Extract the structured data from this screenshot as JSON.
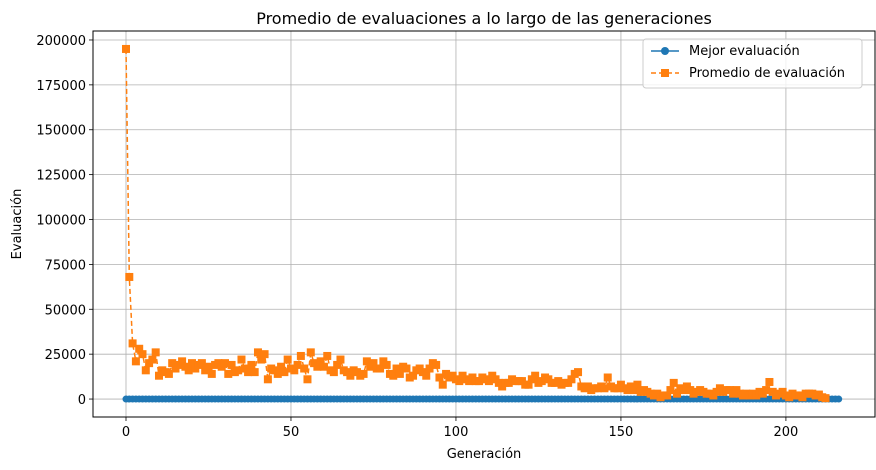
{
  "chart_data": {
    "type": "line",
    "title": "Promedio de evaluaciones a lo largo de las generaciones",
    "xlabel": "Generación",
    "ylabel": "Evaluación",
    "xlim": [
      -10,
      227
    ],
    "ylim": [
      -10000,
      205000
    ],
    "xticks": [
      0,
      50,
      100,
      150,
      200
    ],
    "yticks": [
      0,
      25000,
      50000,
      75000,
      100000,
      125000,
      150000,
      175000,
      200000
    ],
    "grid": true,
    "legend": "top-right",
    "series": [
      {
        "name": "Mejor evaluación",
        "color": "#1f77b4",
        "marker": "circle",
        "linestyle": "solid",
        "x_start": 0,
        "x_step": 1,
        "values": [
          0,
          0,
          0,
          0,
          0,
          0,
          0,
          0,
          0,
          0,
          0,
          0,
          0,
          0,
          0,
          0,
          0,
          0,
          0,
          0,
          0,
          0,
          0,
          0,
          0,
          0,
          0,
          0,
          0,
          0,
          0,
          0,
          0,
          0,
          0,
          0,
          0,
          0,
          0,
          0,
          0,
          0,
          0,
          0,
          0,
          0,
          0,
          0,
          0,
          0,
          0,
          0,
          0,
          0,
          0,
          0,
          0,
          0,
          0,
          0,
          0,
          0,
          0,
          0,
          0,
          0,
          0,
          0,
          0,
          0,
          0,
          0,
          0,
          0,
          0,
          0,
          0,
          0,
          0,
          0,
          0,
          0,
          0,
          0,
          0,
          0,
          0,
          0,
          0,
          0,
          0,
          0,
          0,
          0,
          0,
          0,
          0,
          0,
          0,
          0,
          0,
          0,
          0,
          0,
          0,
          0,
          0,
          0,
          0,
          0,
          0,
          0,
          0,
          0,
          0,
          0,
          0,
          0,
          0,
          0,
          0,
          0,
          0,
          0,
          0,
          0,
          0,
          0,
          0,
          0,
          0,
          0,
          0,
          0,
          0,
          0,
          0,
          0,
          0,
          0,
          0,
          0,
          0,
          0,
          0,
          0,
          0,
          0,
          0,
          0,
          0,
          0,
          0,
          0,
          0,
          0,
          0,
          0,
          0,
          0,
          0,
          0,
          0,
          0,
          0,
          0,
          0,
          0,
          0,
          0,
          0,
          0,
          0,
          0,
          0,
          0,
          0,
          0,
          0,
          0,
          0,
          0,
          0,
          0,
          0,
          0,
          0,
          0,
          0,
          0,
          0,
          0,
          0,
          0,
          0,
          0,
          0,
          0,
          0,
          0,
          0,
          0,
          0,
          0,
          0,
          0,
          0,
          0,
          0,
          0,
          0,
          0,
          0,
          0,
          0,
          0,
          0
        ]
      },
      {
        "name": "Promedio de evaluación",
        "color": "#ff7f0e",
        "marker": "square",
        "linestyle": "dashed",
        "x_start": 0,
        "x_step": 1,
        "values": [
          195000,
          68000,
          31000,
          21000,
          28000,
          25000,
          16000,
          20000,
          22000,
          26000,
          13000,
          16000,
          15000,
          14000,
          20000,
          17000,
          19000,
          21000,
          18000,
          16000,
          20000,
          17000,
          19000,
          20000,
          16000,
          18000,
          14000,
          19000,
          20000,
          18000,
          20000,
          14000,
          19000,
          15000,
          16000,
          22000,
          17000,
          15000,
          19000,
          15000,
          26000,
          22000,
          25000,
          11000,
          17000,
          16000,
          14000,
          18000,
          15000,
          22000,
          17000,
          16000,
          19000,
          24000,
          17000,
          11000,
          26000,
          20000,
          18000,
          21000,
          18000,
          24000,
          16000,
          15000,
          19000,
          22000,
          16000,
          15000,
          13000,
          16000,
          15000,
          13000,
          14000,
          21000,
          18000,
          20000,
          17000,
          17000,
          21000,
          19000,
          14000,
          13000,
          17000,
          14000,
          18000,
          17000,
          12000,
          13000,
          16000,
          17000,
          15000,
          13000,
          17000,
          20000,
          19000,
          12000,
          8000,
          14000,
          12000,
          13000,
          11000,
          10000,
          13000,
          11000,
          10000,
          12000,
          10000,
          10000,
          12000,
          11000,
          10000,
          13000,
          11000,
          9000,
          7000,
          9000,
          9000,
          11000,
          10000,
          10000,
          10000,
          8000,
          8000,
          11000,
          13000,
          9000,
          10000,
          12000,
          11000,
          9000,
          9000,
          10000,
          8000,
          9000,
          9000,
          11000,
          14000,
          15000,
          7000,
          6000,
          7000,
          5000,
          6000,
          6000,
          7000,
          6000,
          12000,
          7000,
          6000,
          6000,
          8000,
          6000,
          5000,
          7000,
          5000,
          8000,
          4000,
          5000,
          4000,
          3000,
          2000,
          3000,
          1000,
          2000,
          2000,
          5000,
          9000,
          3000,
          6000,
          5000,
          7000,
          5000,
          3000,
          4000,
          5000,
          4000,
          3000,
          3000,
          2000,
          4000,
          6000,
          4000,
          5000,
          5000,
          3000,
          5000,
          3000,
          2000,
          3000,
          2000,
          3000,
          2000,
          4000,
          3000,
          5000,
          9500,
          4000,
          2000,
          3000,
          4000,
          2000,
          1000,
          3000,
          2000,
          2000,
          1000,
          3000,
          3000,
          3000,
          2000,
          2500,
          1000,
          500
        ]
      }
    ]
  }
}
